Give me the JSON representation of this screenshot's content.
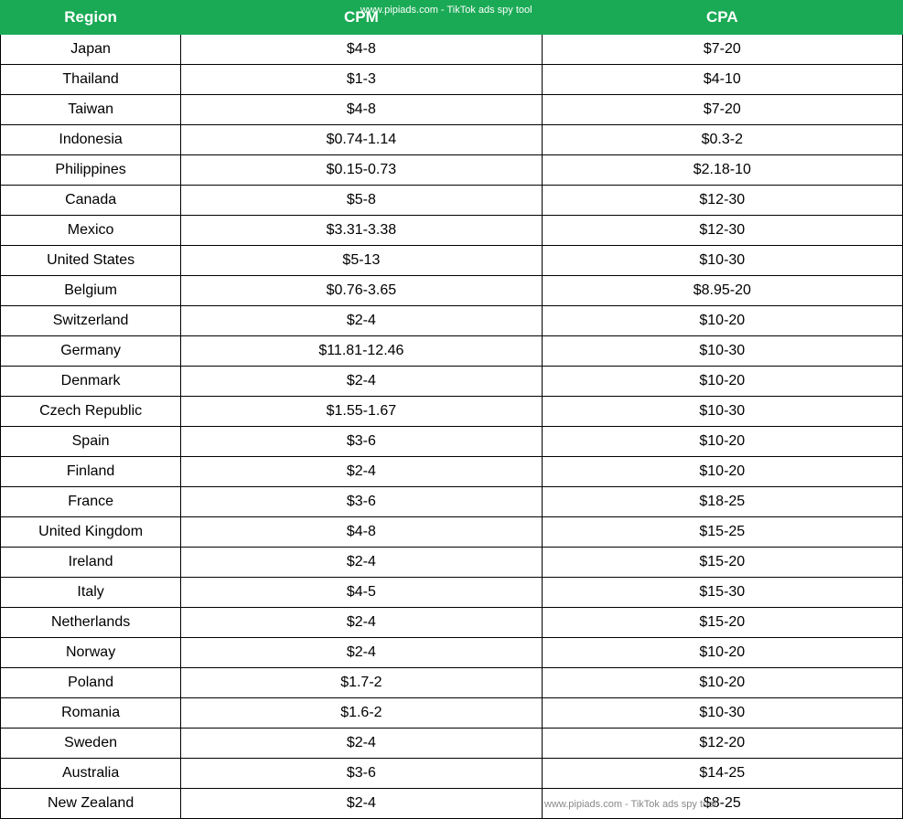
{
  "table": {
    "headers": {
      "region": "Region",
      "cpm": "CPM",
      "cpa": "CPA"
    },
    "watermark": "www.pipiads.com - TikTok ads spy tool",
    "header_bg_color": "#1aaa55",
    "header_text_color": "#ffffff",
    "border_color": "#000000",
    "cell_text_color": "#000000",
    "font_size": 16,
    "header_font_size": 17,
    "rows": [
      {
        "region": "Japan",
        "cpm": "$4-8",
        "cpa": "$7-20"
      },
      {
        "region": "Thailand",
        "cpm": "$1-3",
        "cpa": "$4-10"
      },
      {
        "region": "Taiwan",
        "cpm": "$4-8",
        "cpa": "$7-20"
      },
      {
        "region": "Indonesia",
        "cpm": "$0.74-1.14",
        "cpa": "$0.3-2"
      },
      {
        "region": "Philippines",
        "cpm": "$0.15-0.73",
        "cpa": "$2.18-10"
      },
      {
        "region": "Canada",
        "cpm": "$5-8",
        "cpa": "$12-30"
      },
      {
        "region": "Mexico",
        "cpm": "$3.31-3.38",
        "cpa": "$12-30"
      },
      {
        "region": "United States",
        "cpm": "$5-13",
        "cpa": "$10-30"
      },
      {
        "region": "Belgium",
        "cpm": "$0.76-3.65",
        "cpa": "$8.95-20"
      },
      {
        "region": "Switzerland",
        "cpm": "$2-4",
        "cpa": "$10-20"
      },
      {
        "region": "Germany",
        "cpm": "$11.81-12.46",
        "cpa": "$10-30"
      },
      {
        "region": "Denmark",
        "cpm": "$2-4",
        "cpa": "$10-20"
      },
      {
        "region": "Czech Republic",
        "cpm": "$1.55-1.67",
        "cpa": "$10-30"
      },
      {
        "region": "Spain",
        "cpm": "$3-6",
        "cpa": "$10-20"
      },
      {
        "region": "Finland",
        "cpm": "$2-4",
        "cpa": "$10-20"
      },
      {
        "region": "France",
        "cpm": "$3-6",
        "cpa": "$18-25"
      },
      {
        "region": "United Kingdom",
        "cpm": "$4-8",
        "cpa": "$15-25"
      },
      {
        "region": "Ireland",
        "cpm": "$2-4",
        "cpa": "$15-20"
      },
      {
        "region": "Italy",
        "cpm": "$4-5",
        "cpa": "$15-30"
      },
      {
        "region": "Netherlands",
        "cpm": "$2-4",
        "cpa": "$15-20"
      },
      {
        "region": "Norway",
        "cpm": "$2-4",
        "cpa": "$10-20"
      },
      {
        "region": "Poland",
        "cpm": "$1.7-2",
        "cpa": "$10-20"
      },
      {
        "region": "Romania",
        "cpm": "$1.6-2",
        "cpa": "$10-30"
      },
      {
        "region": "Sweden",
        "cpm": "$2-4",
        "cpa": "$12-20"
      },
      {
        "region": "Australia",
        "cpm": "$3-6",
        "cpa": "$14-25"
      },
      {
        "region": "New Zealand",
        "cpm": "$2-4",
        "cpa": "$8-25"
      }
    ]
  }
}
